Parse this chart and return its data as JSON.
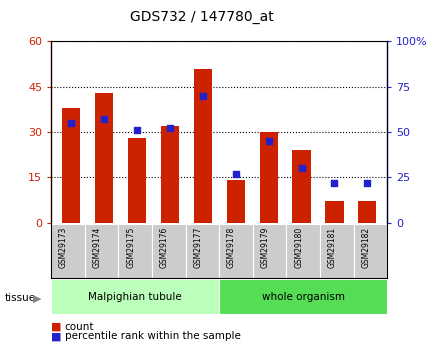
{
  "title": "GDS732 / 147780_at",
  "samples": [
    "GSM29173",
    "GSM29174",
    "GSM29175",
    "GSM29176",
    "GSM29177",
    "GSM29178",
    "GSM29179",
    "GSM29180",
    "GSM29181",
    "GSM29182"
  ],
  "counts": [
    38,
    43,
    28,
    32,
    51,
    14,
    30,
    24,
    7,
    7
  ],
  "percentiles": [
    55,
    57,
    51,
    52,
    70,
    27,
    45,
    30,
    22,
    22
  ],
  "left_ylim": [
    0,
    60
  ],
  "right_ylim": [
    0,
    100
  ],
  "left_yticks": [
    0,
    15,
    30,
    45,
    60
  ],
  "right_yticks": [
    0,
    25,
    50,
    75,
    100
  ],
  "right_yticklabels": [
    "0",
    "25",
    "50",
    "75",
    "100%"
  ],
  "bar_color": "#cc2200",
  "dot_color": "#2222cc",
  "tissue_groups": [
    {
      "label": "Malpighian tubule",
      "start": 0,
      "end": 5,
      "color": "#bbffbb"
    },
    {
      "label": "whole organism",
      "start": 5,
      "end": 10,
      "color": "#55dd55"
    }
  ],
  "tissue_label": "tissue",
  "legend_count_label": "count",
  "legend_pct_label": "percentile rank within the sample",
  "bar_width": 0.55,
  "dot_size": 22,
  "tick_area_color": "#cccccc",
  "plot_bg": "#ffffff",
  "border_color": "#000000"
}
